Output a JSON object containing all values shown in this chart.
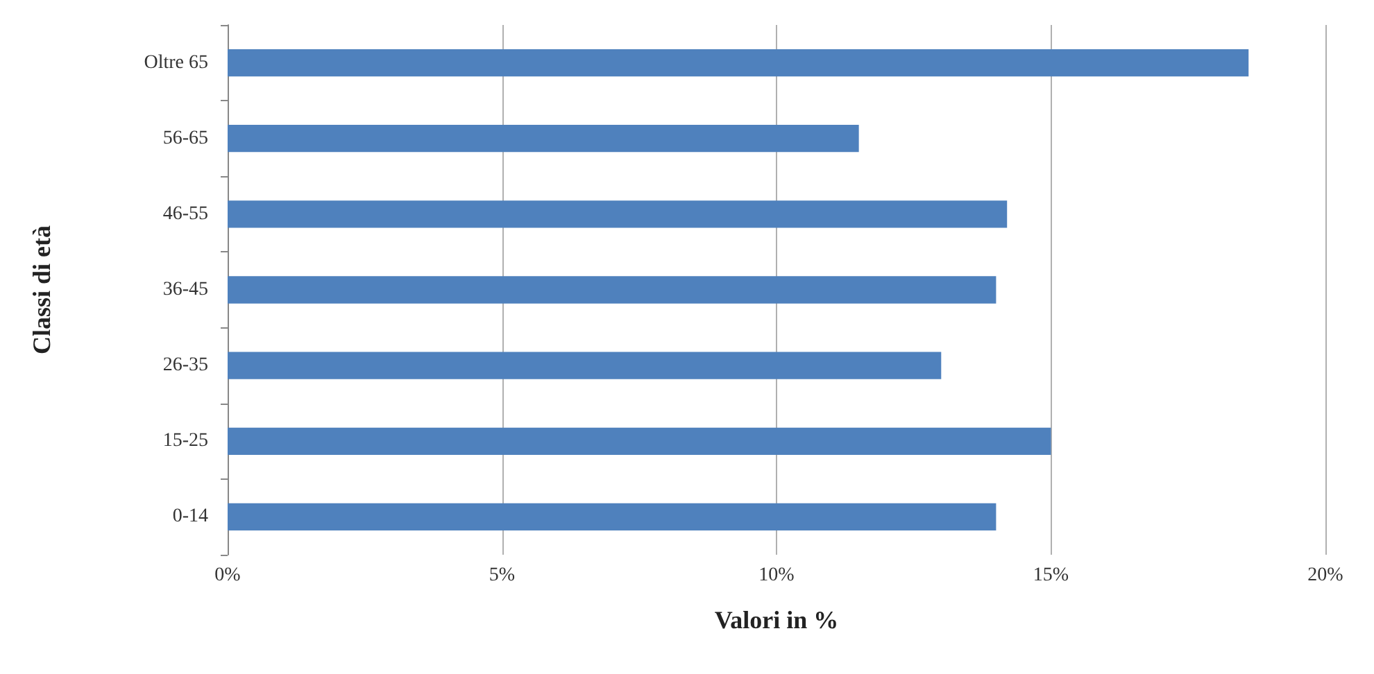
{
  "chart_data": {
    "type": "bar",
    "orientation": "horizontal",
    "xlabel": "Valori in %",
    "ylabel": "Classi di età",
    "categories": [
      "Oltre 65",
      "56-65",
      "46-55",
      "36-45",
      "26-35",
      "15-25",
      "0-14"
    ],
    "values": [
      18.6,
      11.5,
      14.2,
      14.0,
      13.0,
      15.0,
      14.0
    ],
    "color": "#4f81bd",
    "xlim": [
      0,
      20
    ],
    "xticks": [
      {
        "value": 0,
        "label": "0%"
      },
      {
        "value": 5,
        "label": "5%"
      },
      {
        "value": 10,
        "label": "10%"
      },
      {
        "value": 15,
        "label": "15%"
      },
      {
        "value": 20,
        "label": "20%"
      }
    ],
    "grid": "x"
  }
}
